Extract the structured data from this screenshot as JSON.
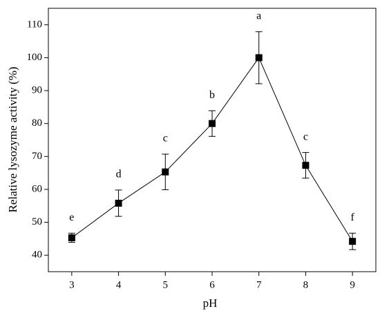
{
  "chart_data": {
    "type": "line",
    "xlabel": "pH",
    "ylabel": "Relative lysozyme activity (%)",
    "x": [
      3,
      4,
      5,
      6,
      7,
      8,
      9
    ],
    "series": [
      {
        "color": "#000000",
        "values": [
          45.3,
          55.8,
          65.3,
          80,
          100,
          67.3,
          44.2
        ],
        "errors": [
          1.4,
          4,
          5.4,
          3.9,
          7.9,
          3.9,
          2.5
        ],
        "annotations": [
          "e",
          "d",
          "c",
          "b",
          "a",
          "c",
          "f"
        ]
      }
    ],
    "xlim": [
      2.5,
      9.5
    ],
    "xticks": [
      3,
      4,
      5,
      6,
      7,
      8,
      9
    ],
    "ylim": [
      35,
      115
    ],
    "yticks": [
      40,
      50,
      60,
      70,
      80,
      90,
      100,
      110
    ]
  }
}
